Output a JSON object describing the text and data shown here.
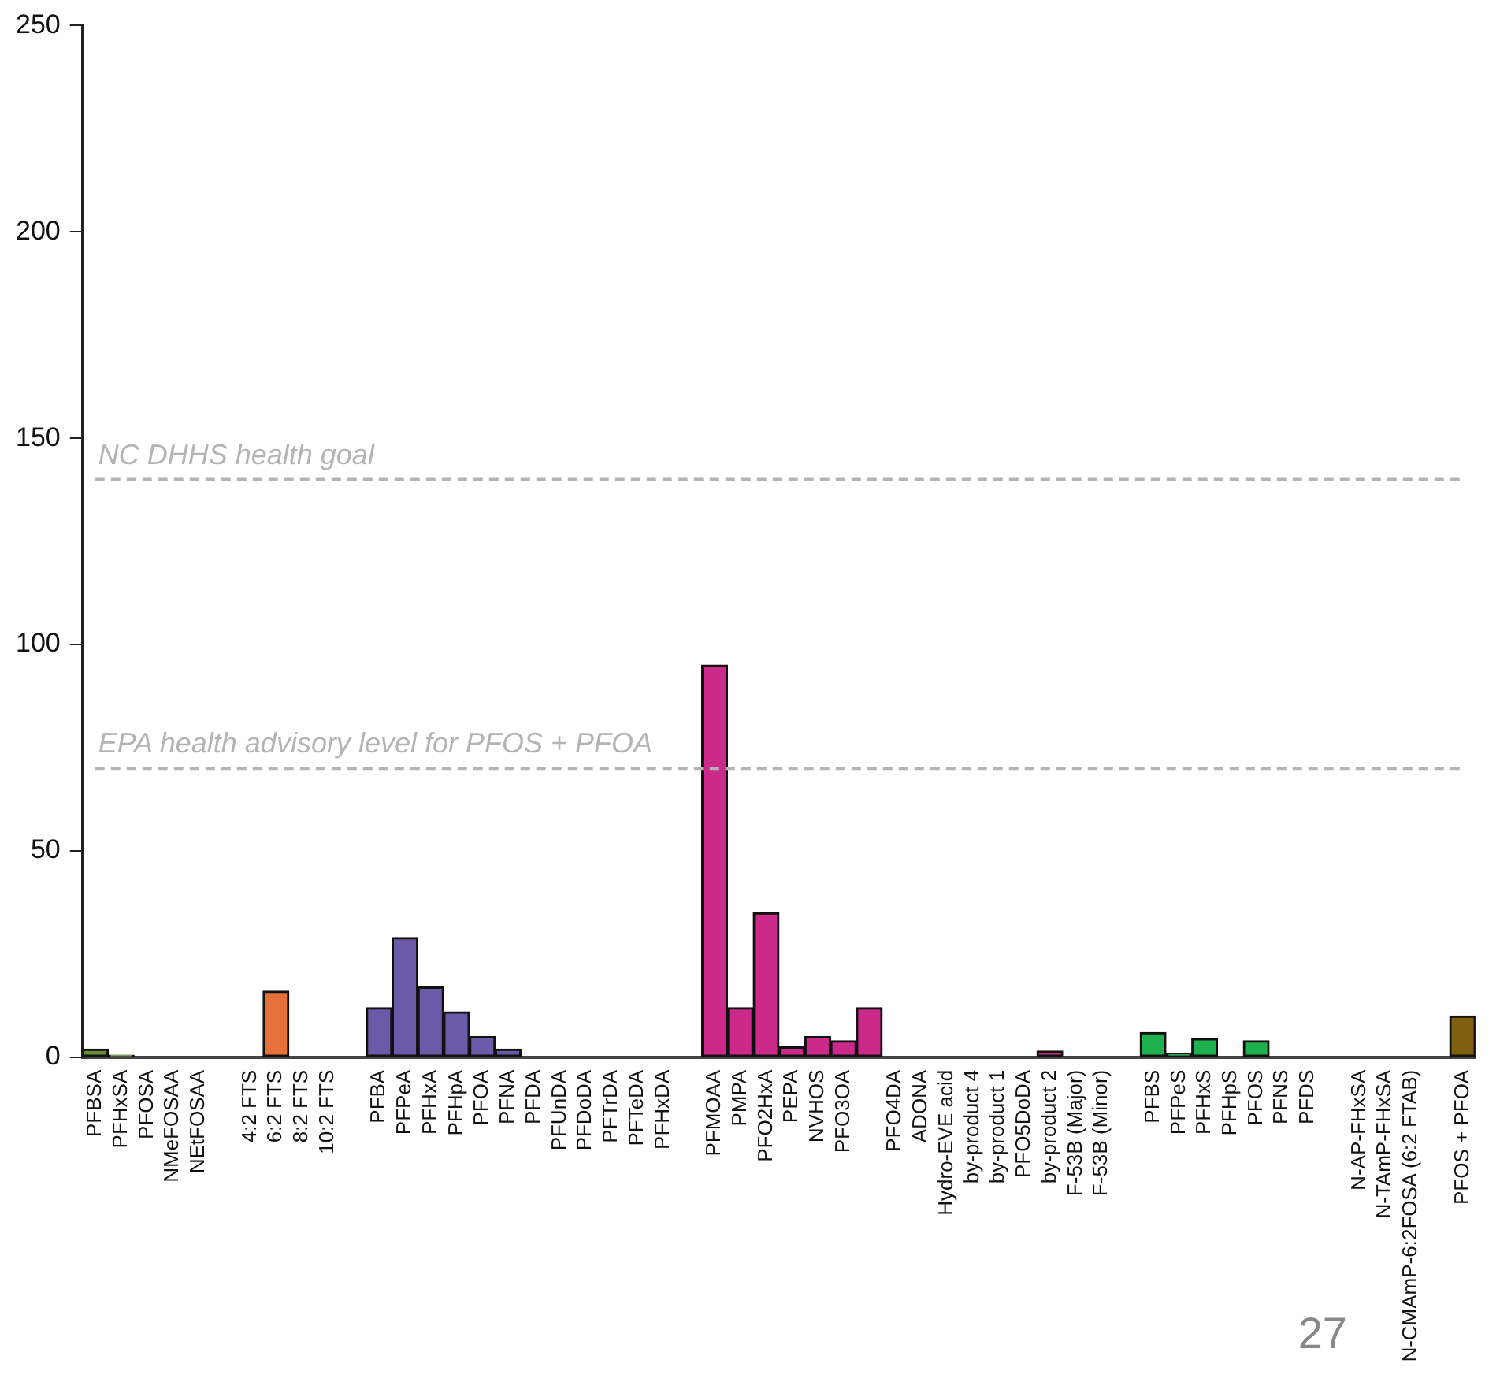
{
  "chart_data": {
    "type": "bar",
    "categories": [
      "PFBSA",
      "PFHxSA",
      "PFOSA",
      "NMeFOSAA",
      "NEtFOSAA",
      null,
      "4:2 FTS",
      "6:2 FTS",
      "8:2 FTS",
      "10:2 FTS",
      null,
      "PFBA",
      "PFPeA",
      "PFHxA",
      "PFHpA",
      "PFOA",
      "PFNA",
      "PFDA",
      "PFUnDA",
      "PFDoDA",
      "PFTrDA",
      "PFTeDA",
      "PFHxDA",
      null,
      "PFMOAA",
      "PMPA",
      "PFO2HxA",
      "PEPA",
      "NVHOS",
      "PFO3OA",
      null,
      "PFO4DA",
      "ADONA",
      "Hydro-EVE acid",
      "by-product 4",
      "by-product 1",
      "PFO5DoDA",
      "by-product 2",
      "F-53B (Major)",
      "F-53B (Minor)",
      null,
      "PFBS",
      "PFPeS",
      "PFHxS",
      "PFHpS",
      "PFOS",
      "PFNS",
      "PFDS",
      null,
      "N-AP-FHxSA",
      "N-TAmP-FHxSA",
      "N-CMAmP-6:2FOSA (6:2 FTAB)",
      null,
      "PFOS + PFOA"
    ],
    "values": [
      2,
      0.5,
      0,
      0,
      0,
      null,
      0,
      16,
      0,
      0,
      null,
      12,
      29,
      17,
      11,
      5,
      2,
      0,
      0,
      0,
      0,
      0,
      0,
      null,
      95,
      12,
      35,
      2.5,
      5,
      4,
      12,
      0,
      0,
      0,
      0,
      0,
      0,
      1.5,
      0,
      0,
      null,
      6,
      1,
      4.5,
      0,
      4,
      0,
      0,
      null,
      0,
      0,
      0,
      null,
      10
    ],
    "colors": [
      "#6a8f3c",
      "#6a8f3c",
      "#6a8f3c",
      "#6a8f3c",
      "#6a8f3c",
      null,
      "#e8703a",
      "#e8703a",
      "#e8703a",
      "#e8703a",
      null,
      "#6a5aa8",
      "#6a5aa8",
      "#6a5aa8",
      "#6a5aa8",
      "#6a5aa8",
      "#6a5aa8",
      "#6a5aa8",
      "#6a5aa8",
      "#6a5aa8",
      "#6a5aa8",
      "#6a5aa8",
      "#6a5aa8",
      null,
      "#cc2a8a",
      "#cc2a8a",
      "#cc2a8a",
      "#cc2a8a",
      "#cc2a8a",
      "#cc2a8a",
      "#cc2a8a",
      "#cc2a8a",
      "#cc2a8a",
      "#cc2a8a",
      "#cc2a8a",
      "#cc2a8a",
      "#cc2a8a",
      "#cc2a8a",
      "#cc2a8a",
      "#cc2a8a",
      null,
      "#1fb050",
      "#1fb050",
      "#1fb050",
      "#1fb050",
      "#1fb050",
      "#1fb050",
      "#1fb050",
      null,
      "#1fb050",
      "#1fb050",
      "#1fb050",
      null,
      "#7f6010"
    ],
    "ylim": [
      0,
      250
    ],
    "yticks": [
      0,
      50,
      100,
      150,
      200,
      250
    ],
    "grid": false,
    "legend": false,
    "ref_lines": [
      {
        "axis": "y",
        "value": 140,
        "label": "NC DHHS health goal",
        "color": "#b4b4b4",
        "line_style": "dashed"
      },
      {
        "axis": "y",
        "value": 70,
        "label": "EPA health advisory level for PFOS + PFOA",
        "color": "#b4b4b4",
        "line_style": "dashed"
      }
    ],
    "annotations": [
      "27"
    ]
  }
}
